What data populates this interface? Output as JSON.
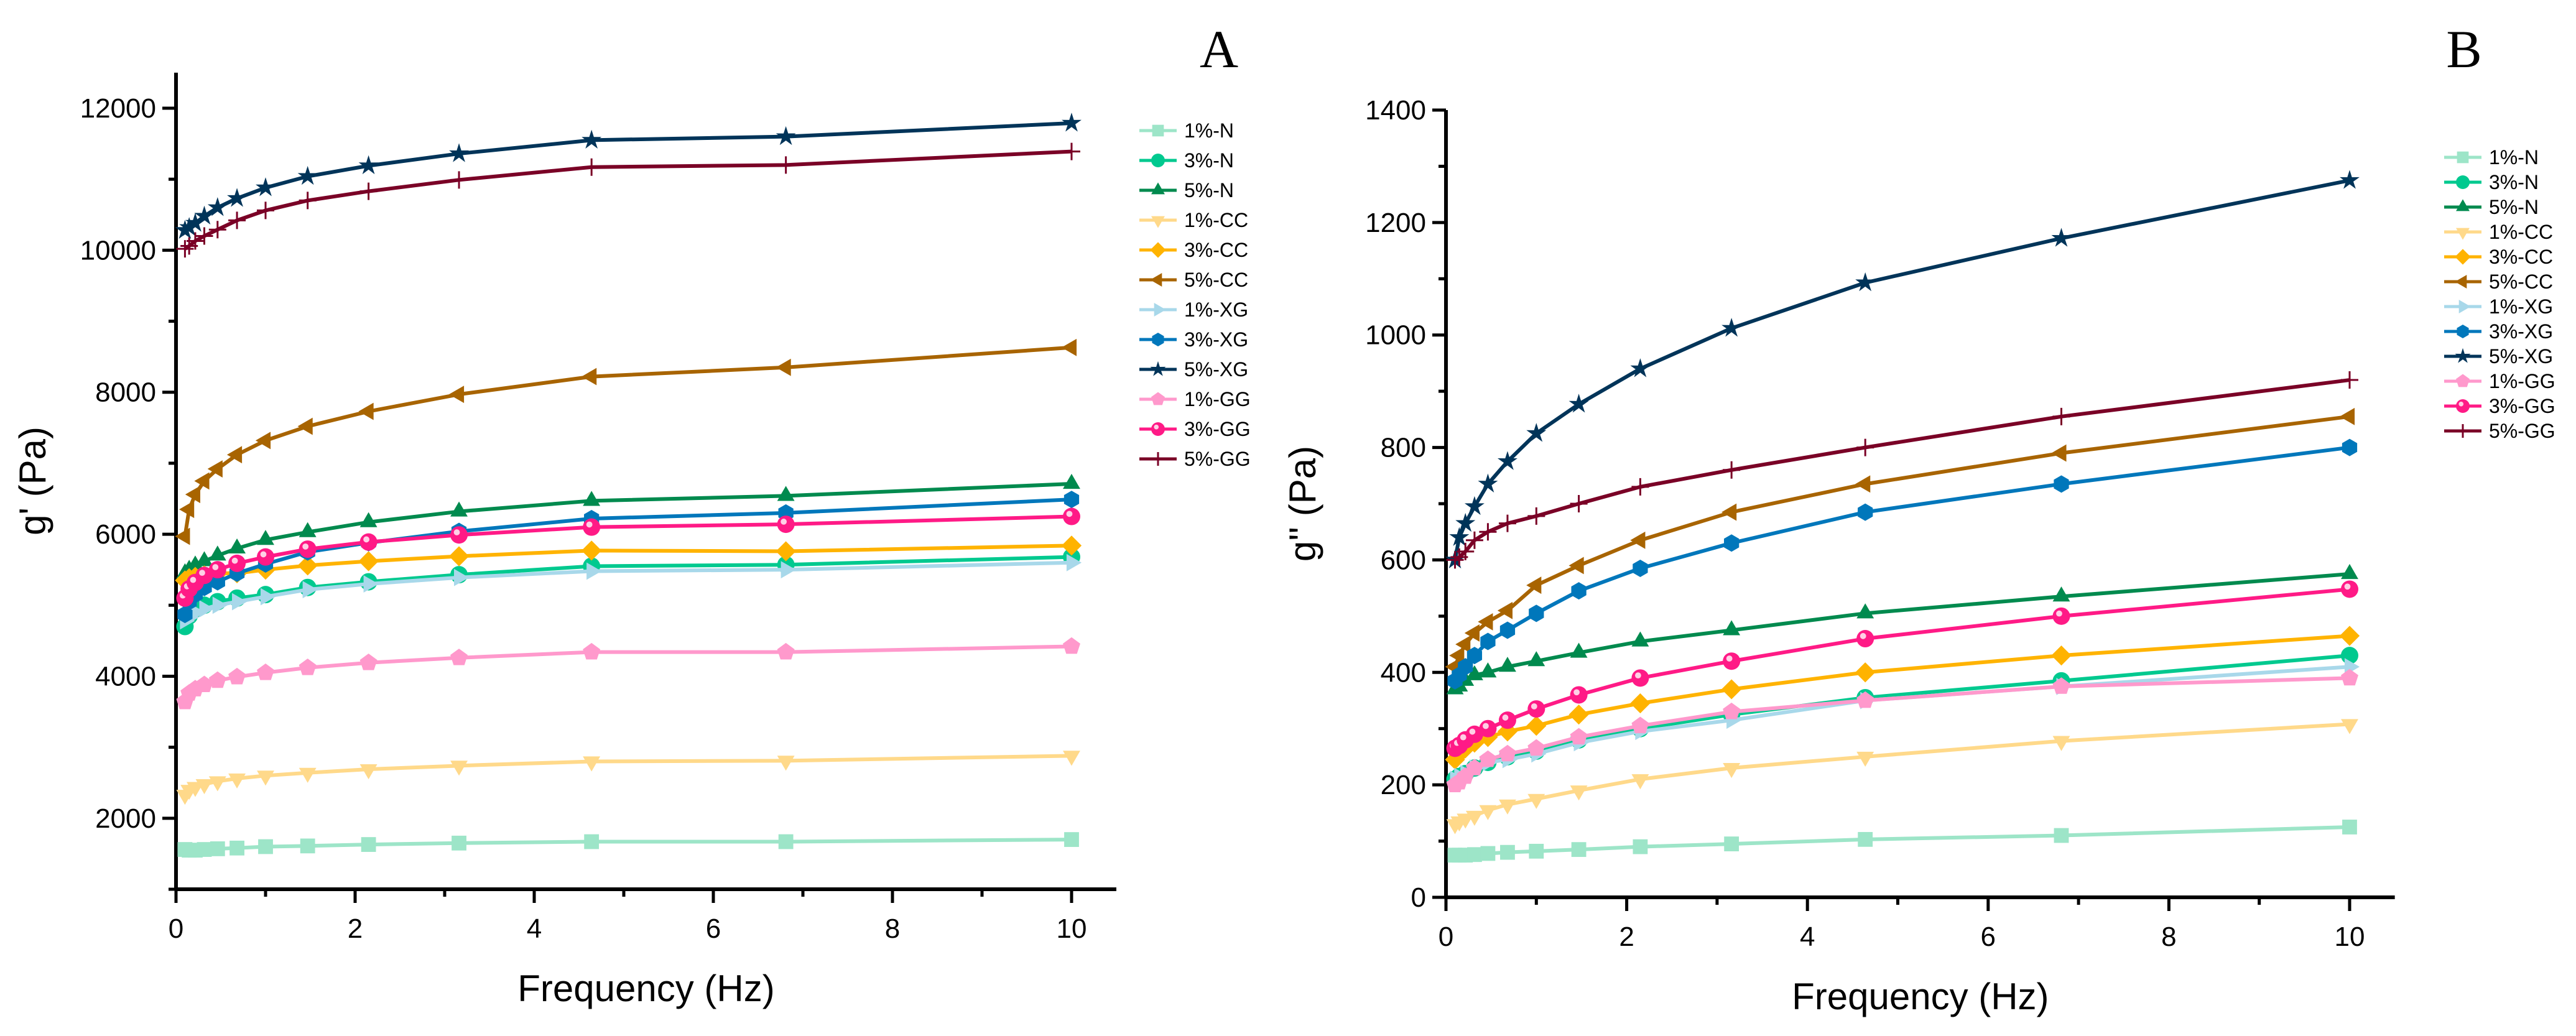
{
  "chart_data": [
    {
      "type": "line",
      "panel_label": "A",
      "xlabel": "Frequency (Hz)",
      "ylabel": "g' (Pa)",
      "xlim": [
        0,
        10.5
      ],
      "ylim": [
        1000,
        12500
      ],
      "xticks": [
        0,
        2,
        4,
        6,
        8,
        10
      ],
      "yticks": [
        2000,
        4000,
        6000,
        8000,
        10000,
        12000
      ],
      "legend_position": "right",
      "x": [
        0.1,
        0.147,
        0.215,
        0.316,
        0.464,
        0.681,
        1,
        1.47,
        2.15,
        3.16,
        4.64,
        6.81,
        10
      ],
      "series": [
        {
          "name": "1%-N",
          "color": "#9de5c8",
          "marker": "square",
          "values": [
            1560,
            1550,
            1550,
            1560,
            1570,
            1580,
            1600,
            1610,
            1630,
            1650,
            1670,
            1670,
            1700
          ]
        },
        {
          "name": "3%-N",
          "color": "#00c98f",
          "marker": "circle",
          "values": [
            4700,
            4850,
            4950,
            5000,
            5050,
            5100,
            5150,
            5250,
            5330,
            5430,
            5550,
            5570,
            5680
          ]
        },
        {
          "name": "5%-N",
          "color": "#008a4e",
          "marker": "triangle-up",
          "values": [
            5450,
            5500,
            5560,
            5620,
            5700,
            5800,
            5920,
            6030,
            6170,
            6320,
            6470,
            6540,
            6710
          ]
        },
        {
          "name": "1%-CC",
          "color": "#ffd98a",
          "marker": "triangle-down",
          "values": [
            2330,
            2400,
            2440,
            2480,
            2520,
            2560,
            2600,
            2640,
            2690,
            2740,
            2800,
            2810,
            2880
          ]
        },
        {
          "name": "3%-CC",
          "color": "#ffb300",
          "marker": "diamond",
          "values": [
            5350,
            5380,
            5400,
            5420,
            5450,
            5450,
            5500,
            5560,
            5620,
            5690,
            5770,
            5760,
            5840
          ]
        },
        {
          "name": "5%-CC",
          "color": "#a86400",
          "marker": "triangle-left",
          "values": [
            5970,
            6350,
            6560,
            6750,
            6920,
            7120,
            7320,
            7520,
            7730,
            7970,
            8220,
            8350,
            8630
          ]
        },
        {
          "name": "1%-XG",
          "color": "#a8d8ea",
          "marker": "triangle-right",
          "values": [
            4780,
            4830,
            4900,
            4950,
            5000,
            5050,
            5120,
            5220,
            5300,
            5390,
            5480,
            5500,
            5600
          ]
        },
        {
          "name": "3%-XG",
          "color": "#0077bb",
          "marker": "hexagon",
          "values": [
            4870,
            5050,
            5150,
            5250,
            5330,
            5450,
            5580,
            5750,
            5880,
            6040,
            6220,
            6300,
            6490
          ]
        },
        {
          "name": "5%-XG",
          "color": "#003459",
          "marker": "star",
          "values": [
            10280,
            10320,
            10380,
            10480,
            10600,
            10730,
            10880,
            11040,
            11190,
            11360,
            11550,
            11600,
            11790
          ]
        },
        {
          "name": "1%-GG",
          "color": "#ff99cc",
          "marker": "pentagon",
          "values": [
            3640,
            3760,
            3820,
            3880,
            3940,
            3990,
            4050,
            4120,
            4190,
            4260,
            4340,
            4340,
            4420
          ]
        },
        {
          "name": "3%-GG",
          "color": "#ff1a86",
          "marker": "sphere",
          "values": [
            5100,
            5230,
            5320,
            5420,
            5500,
            5590,
            5680,
            5790,
            5890,
            5990,
            6100,
            6140,
            6250
          ]
        },
        {
          "name": "5%-GG",
          "color": "#7a0026",
          "marker": "plus",
          "values": [
            10020,
            10060,
            10130,
            10200,
            10290,
            10420,
            10560,
            10700,
            10830,
            10990,
            11170,
            11200,
            11390
          ]
        }
      ]
    },
    {
      "type": "line",
      "panel_label": "B",
      "xlabel": "Frequency (Hz)",
      "ylabel": "g'' (Pa)",
      "xlim": [
        0,
        10.5
      ],
      "ylim": [
        0,
        1400
      ],
      "xticks": [
        0,
        2,
        4,
        6,
        8,
        10
      ],
      "yticks": [
        0,
        200,
        400,
        600,
        800,
        1000,
        1200,
        1400
      ],
      "legend_position": "right",
      "x": [
        0.1,
        0.147,
        0.215,
        0.316,
        0.464,
        0.681,
        1,
        1.47,
        2.15,
        3.16,
        4.64,
        6.81,
        10
      ],
      "series": [
        {
          "name": "1%-N",
          "color": "#9de5c8",
          "marker": "square",
          "values": [
            75,
            75,
            75,
            76,
            78,
            80,
            82,
            85,
            90,
            95,
            103,
            110,
            125
          ]
        },
        {
          "name": "3%-N",
          "color": "#00c98f",
          "marker": "circle",
          "values": [
            210,
            215,
            220,
            230,
            240,
            250,
            260,
            280,
            300,
            325,
            355,
            385,
            430
          ]
        },
        {
          "name": "5%-N",
          "color": "#008a4e",
          "marker": "triangle-up",
          "values": [
            370,
            375,
            385,
            395,
            400,
            410,
            420,
            435,
            455,
            475,
            505,
            535,
            575
          ]
        },
        {
          "name": "1%-CC",
          "color": "#ffd98a",
          "marker": "triangle-down",
          "values": [
            130,
            135,
            140,
            145,
            155,
            165,
            175,
            190,
            210,
            230,
            250,
            278,
            308
          ]
        },
        {
          "name": "3%-CC",
          "color": "#ffb300",
          "marker": "diamond",
          "values": [
            245,
            255,
            265,
            275,
            285,
            295,
            305,
            325,
            345,
            370,
            400,
            430,
            465
          ]
        },
        {
          "name": "5%-CC",
          "color": "#a86400",
          "marker": "triangle-left",
          "values": [
            410,
            430,
            450,
            470,
            490,
            510,
            555,
            590,
            635,
            685,
            735,
            790,
            855
          ]
        },
        {
          "name": "1%-XG",
          "color": "#a8d8ea",
          "marker": "triangle-right",
          "values": [
            210,
            215,
            220,
            230,
            240,
            245,
            255,
            275,
            295,
            315,
            350,
            375,
            410
          ]
        },
        {
          "name": "3%-XG",
          "color": "#0077bb",
          "marker": "hexagon",
          "values": [
            385,
            395,
            410,
            430,
            455,
            475,
            505,
            545,
            585,
            630,
            685,
            735,
            800
          ]
        },
        {
          "name": "5%-XG",
          "color": "#003459",
          "marker": "star",
          "values": [
            600,
            640,
            665,
            695,
            735,
            775,
            825,
            877,
            940,
            1012,
            1093,
            1172,
            1275
          ]
        },
        {
          "name": "1%-GG",
          "color": "#ff99cc",
          "marker": "pentagon",
          "values": [
            200,
            205,
            215,
            230,
            245,
            255,
            265,
            285,
            305,
            330,
            350,
            375,
            390
          ]
        },
        {
          "name": "3%-GG",
          "color": "#ff1a86",
          "marker": "sphere",
          "values": [
            265,
            270,
            280,
            290,
            300,
            315,
            335,
            360,
            390,
            420,
            460,
            500,
            548
          ]
        },
        {
          "name": "5%-GG",
          "color": "#7a0026",
          "marker": "plus",
          "values": [
            600,
            605,
            615,
            635,
            650,
            665,
            678,
            700,
            730,
            760,
            800,
            855,
            920
          ]
        }
      ]
    }
  ]
}
